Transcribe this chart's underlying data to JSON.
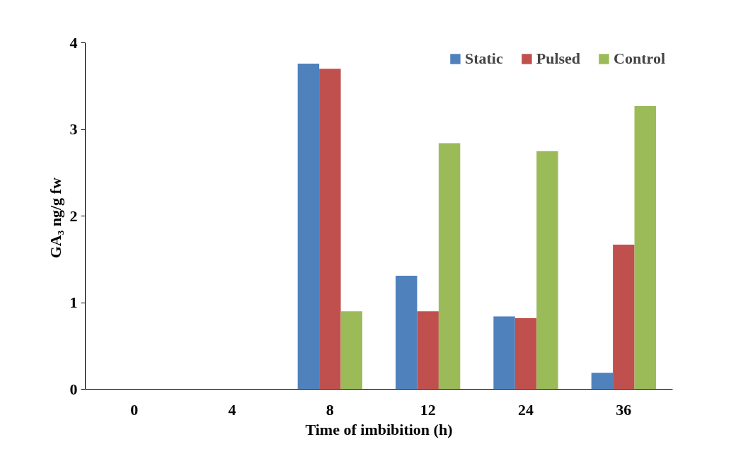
{
  "chart_data": {
    "type": "bar",
    "xlabel": "Time of imbibition (h)",
    "ylabel": "GA₃  ng/g fw",
    "categories": [
      "0",
      "4",
      "8",
      "12",
      "24",
      "36"
    ],
    "series": [
      {
        "name": "Static",
        "color": "#4f81bd",
        "values": [
          0,
          0,
          3.76,
          1.31,
          0.84,
          0.19
        ]
      },
      {
        "name": "Pulsed",
        "color": "#c0504d",
        "values": [
          0,
          0,
          3.7,
          0.9,
          0.82,
          1.67
        ]
      },
      {
        "name": "Control",
        "color": "#9bbb59",
        "values": [
          0,
          0,
          0.9,
          2.84,
          2.75,
          3.27
        ]
      }
    ],
    "ylim": [
      0,
      4
    ],
    "yticks": [
      0,
      1,
      2,
      3,
      4
    ],
    "grid": false,
    "legend": "top right"
  }
}
